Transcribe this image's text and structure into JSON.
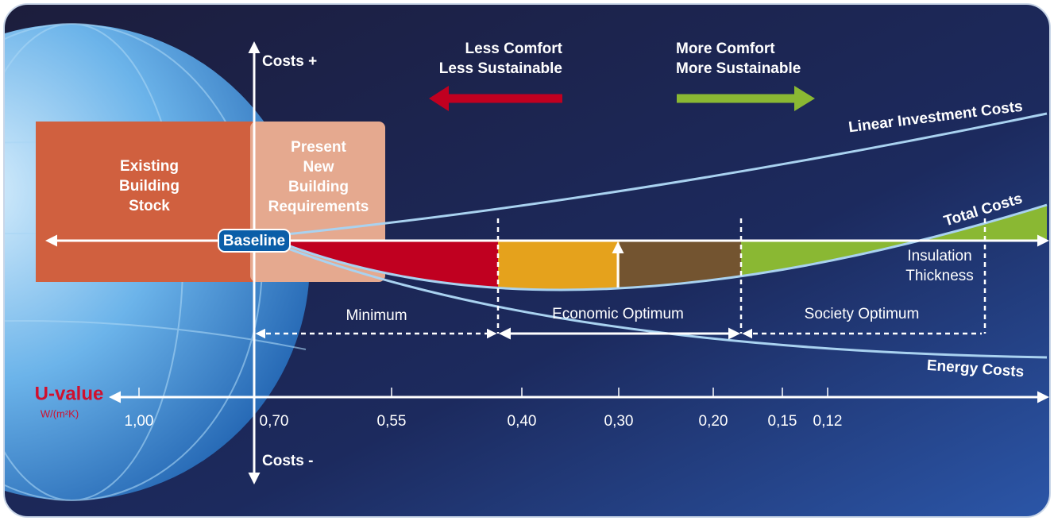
{
  "axis": {
    "costs_up": "Costs +",
    "costs_down": "Costs -",
    "u_value": "U-value",
    "u_unit": "W/(m²K)",
    "u_ticks": [
      "1,00",
      "0,70",
      "0,55",
      "0,40",
      "0,30",
      "0,20",
      "0,15",
      "0,12"
    ]
  },
  "direction": {
    "left": [
      "Less Comfort",
      "Less Sustainable"
    ],
    "right": [
      "More Comfort",
      "More Sustainable"
    ]
  },
  "curves": {
    "investment": "Linear Investment Costs",
    "total": "Total Costs",
    "energy": "Energy Costs",
    "insulation": [
      "Insulation",
      "Thickness"
    ]
  },
  "boxes": {
    "existing": [
      "Existing",
      "Building",
      "Stock"
    ],
    "present": [
      "Present",
      "New",
      "Building",
      "Requirements"
    ],
    "baseline": "Baseline"
  },
  "ranges": {
    "minimum": "Minimum",
    "economic": "Economic Optimum",
    "society": "Society Optimum"
  }
}
